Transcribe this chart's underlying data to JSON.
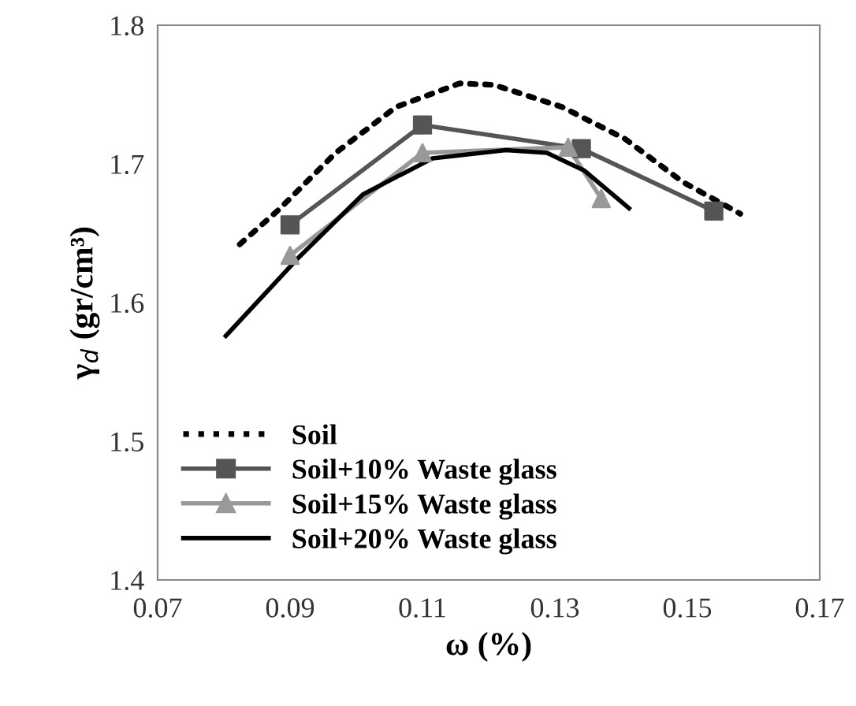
{
  "chart_data": {
    "type": "line",
    "xlabel": "ω (%)",
    "ylabel": "γ$_{d}$ (gr/cm³)",
    "xlim": [
      0.07,
      0.17
    ],
    "xticks": [
      0.07,
      0.09,
      0.11,
      0.13,
      0.15,
      0.17
    ],
    "ylim": [
      1.4,
      1.8
    ],
    "yticks": [
      1.4,
      1.5,
      1.6,
      1.7,
      1.8
    ],
    "grid": false,
    "legend": "bottom left",
    "series": [
      {
        "name": "Soil",
        "color": "#000000",
        "line_style": "dotted",
        "marker": "none",
        "x": [
          0.0824,
          0.0883,
          0.0969,
          0.106,
          0.1156,
          0.1208,
          0.1311,
          0.1406,
          0.1493,
          0.158
        ],
        "values": [
          1.642,
          1.667,
          1.708,
          1.741,
          1.758,
          1.757,
          1.741,
          1.718,
          1.687,
          1.664
        ]
      },
      {
        "name": "Soil+10% Waste glass",
        "color": "#555555",
        "line_style": "solid",
        "marker": "square",
        "x": [
          0.09,
          0.11,
          0.134,
          0.154
        ],
        "values": [
          1.656,
          1.728,
          1.711,
          1.666
        ]
      },
      {
        "name": "Soil+15% Waste glass",
        "color": "#999999",
        "line_style": "solid",
        "marker": "triangle",
        "x": [
          0.09,
          0.11,
          0.132,
          0.137
        ],
        "values": [
          1.634,
          1.708,
          1.712,
          1.675
        ]
      },
      {
        "name": "Soil+20% Waste glass",
        "color": "#000000",
        "line_style": "solid",
        "marker": "none",
        "x": [
          0.0803,
          0.0914,
          0.101,
          0.1115,
          0.1226,
          0.1288,
          0.1345,
          0.1412
        ],
        "values": [
          1.576,
          1.633,
          1.678,
          1.704,
          1.71,
          1.708,
          1.695,
          1.668
        ]
      }
    ]
  }
}
